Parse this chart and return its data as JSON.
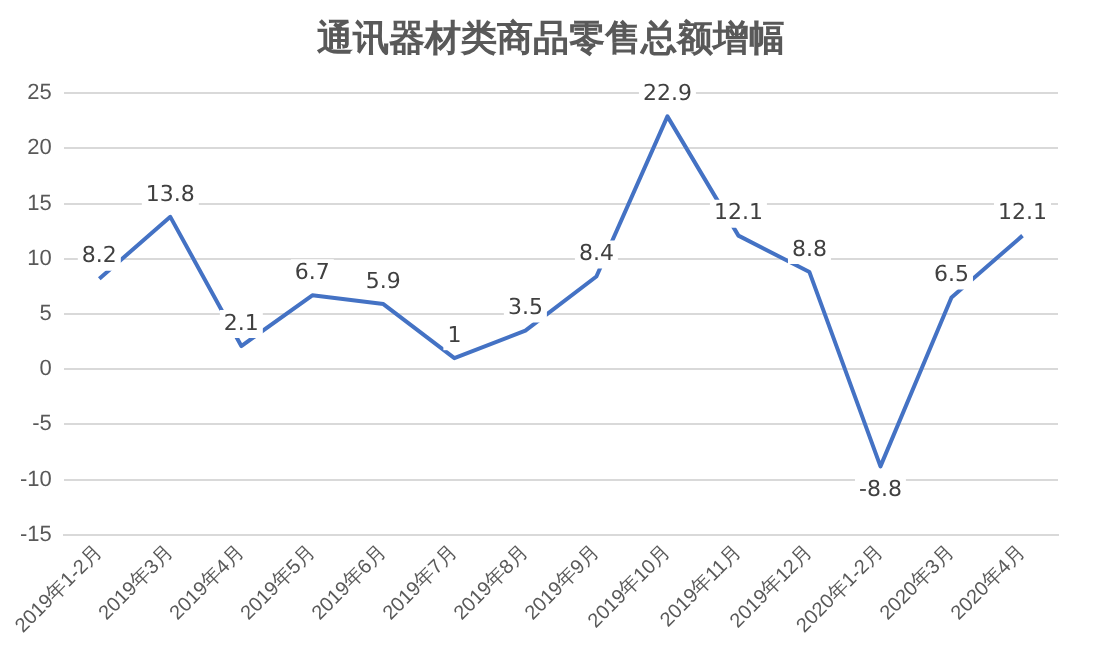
{
  "chart_data": {
    "type": "line",
    "title": "通讯器材类商品零售总额增幅",
    "categories": [
      "2019年1-2月",
      "2019年3月",
      "2019年4月",
      "2019年5月",
      "2019年6月",
      "2019年7月",
      "2019年8月",
      "2019年9月",
      "2019年10月",
      "2019年11月",
      "2019年12月",
      "2020年1-2月",
      "2020年3月",
      "2020年4月"
    ],
    "series": [
      {
        "color": "#4472c4",
        "values": [
          8.2,
          13.8,
          2.1,
          6.7,
          5.9,
          1,
          3.5,
          8.4,
          22.9,
          12.1,
          8.8,
          -8.8,
          6.5,
          12.1
        ]
      }
    ],
    "ylim": [
      -15,
      25
    ],
    "yticks": [
      -15,
      -10,
      -5,
      0,
      5,
      10,
      15,
      20,
      25
    ],
    "grid": "y",
    "data_labels": true,
    "marker": "none",
    "line_style": "solid"
  }
}
